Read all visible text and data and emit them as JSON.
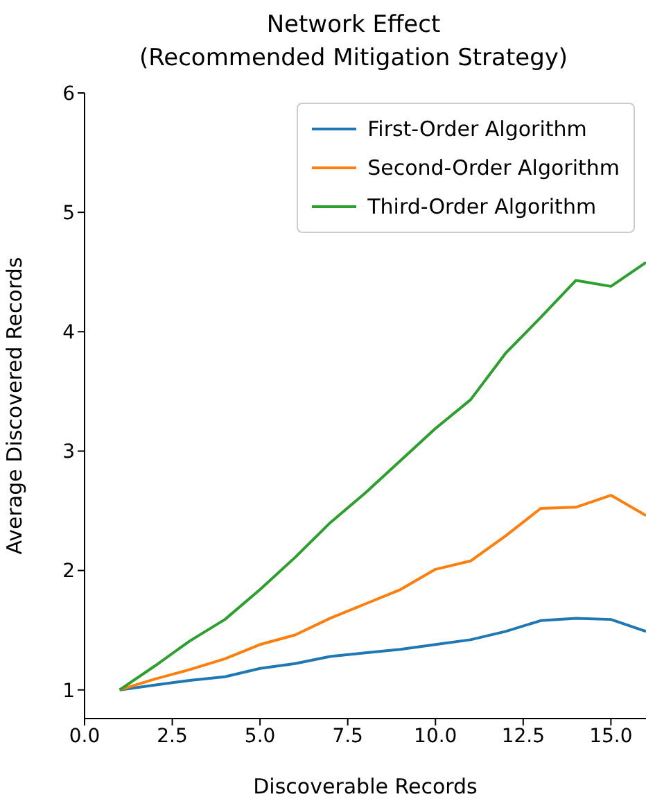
{
  "chart_data": {
    "type": "line",
    "title": "Network Effect\n(Recommended Mitigation Strategy)",
    "xlabel": "Discoverable Records",
    "ylabel": "Average Discovered Records",
    "x": [
      1,
      2,
      3,
      4,
      5,
      6,
      7,
      8,
      9,
      10,
      11,
      12,
      13,
      14,
      15,
      16
    ],
    "series": [
      {
        "name": "First-Order Algorithm",
        "color": "#1f77b4",
        "values": [
          1,
          1.04,
          1.08,
          1.11,
          1.18,
          1.22,
          1.28,
          1.31,
          1.34,
          1.38,
          1.42,
          1.49,
          1.58,
          1.6,
          1.59,
          1.49
        ]
      },
      {
        "name": "Second-Order Algorithm",
        "color": "#ff7f0e",
        "values": [
          1,
          1.09,
          1.17,
          1.26,
          1.38,
          1.46,
          1.6,
          1.72,
          1.84,
          2.01,
          2.08,
          2.29,
          2.52,
          2.53,
          2.63,
          2.46
        ]
      },
      {
        "name": "Third-Order Algorithm",
        "color": "#2ca02c",
        "values": [
          1,
          1.2,
          1.41,
          1.59,
          1.84,
          2.11,
          2.4,
          2.65,
          2.92,
          3.19,
          3.43,
          3.82,
          4.12,
          4.43,
          4.38,
          4.58
        ]
      }
    ],
    "xlim": [
      0,
      16
    ],
    "xticks": [
      {
        "value": 0,
        "label": "0.0"
      },
      {
        "value": 2.5,
        "label": "2.5"
      },
      {
        "value": 5,
        "label": "5.0"
      },
      {
        "value": 7.5,
        "label": "7.5"
      },
      {
        "value": 10,
        "label": "10.0"
      },
      {
        "value": 12.5,
        "label": "12.5"
      },
      {
        "value": 15,
        "label": "15.0"
      }
    ],
    "ylim": [
      0.76,
      6
    ],
    "yticks": [
      1,
      2,
      3,
      4,
      5,
      6
    ],
    "legend": "top right",
    "marker": "none",
    "line_style": "solid",
    "grid": false
  }
}
